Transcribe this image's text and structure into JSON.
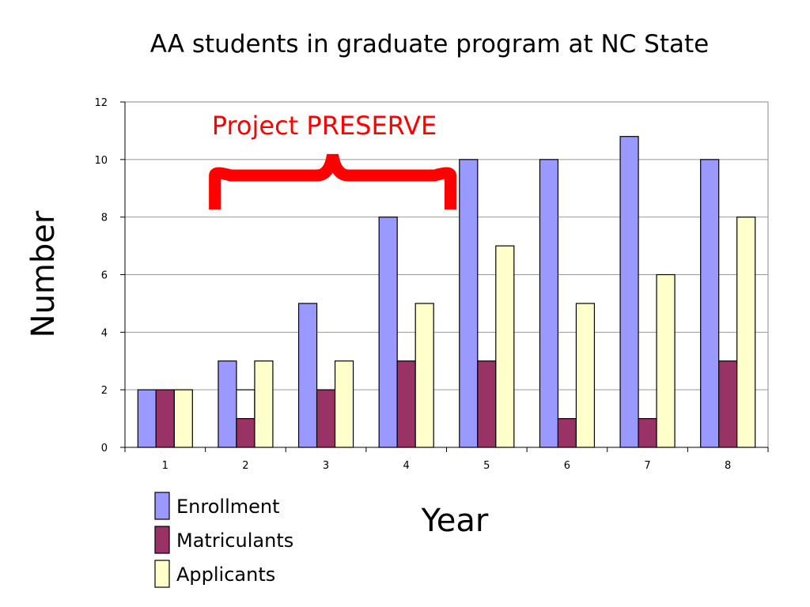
{
  "chart_data": {
    "type": "bar",
    "title": "AA students in graduate program at NC State",
    "xlabel": "Year",
    "ylabel": "Number",
    "categories": [
      "1",
      "2",
      "3",
      "4",
      "5",
      "6",
      "7",
      "8"
    ],
    "ylim": [
      0,
      12
    ],
    "yticks": [
      "0",
      "2",
      "4",
      "6",
      "8",
      "10",
      "12"
    ],
    "grid": true,
    "legend_position": "bottom-left",
    "series": [
      {
        "name": "Enrollment",
        "color": "#9999ff",
        "values": [
          2,
          3,
          5,
          8,
          10,
          10,
          10.8,
          10
        ]
      },
      {
        "name": "Matriculants",
        "color": "#993366",
        "values": [
          2,
          1,
          2,
          3,
          3,
          1,
          1,
          3
        ]
      },
      {
        "name": "Applicants",
        "color": "#ffffcc",
        "values": [
          2,
          3,
          3,
          5,
          7,
          5,
          6,
          8
        ]
      }
    ],
    "annotation": {
      "text": "Project PRESERVE",
      "color": "#ff0000",
      "spans_categories": [
        "2",
        "5"
      ]
    },
    "extra_outline_marker": {
      "category": "2",
      "value": 2
    }
  }
}
